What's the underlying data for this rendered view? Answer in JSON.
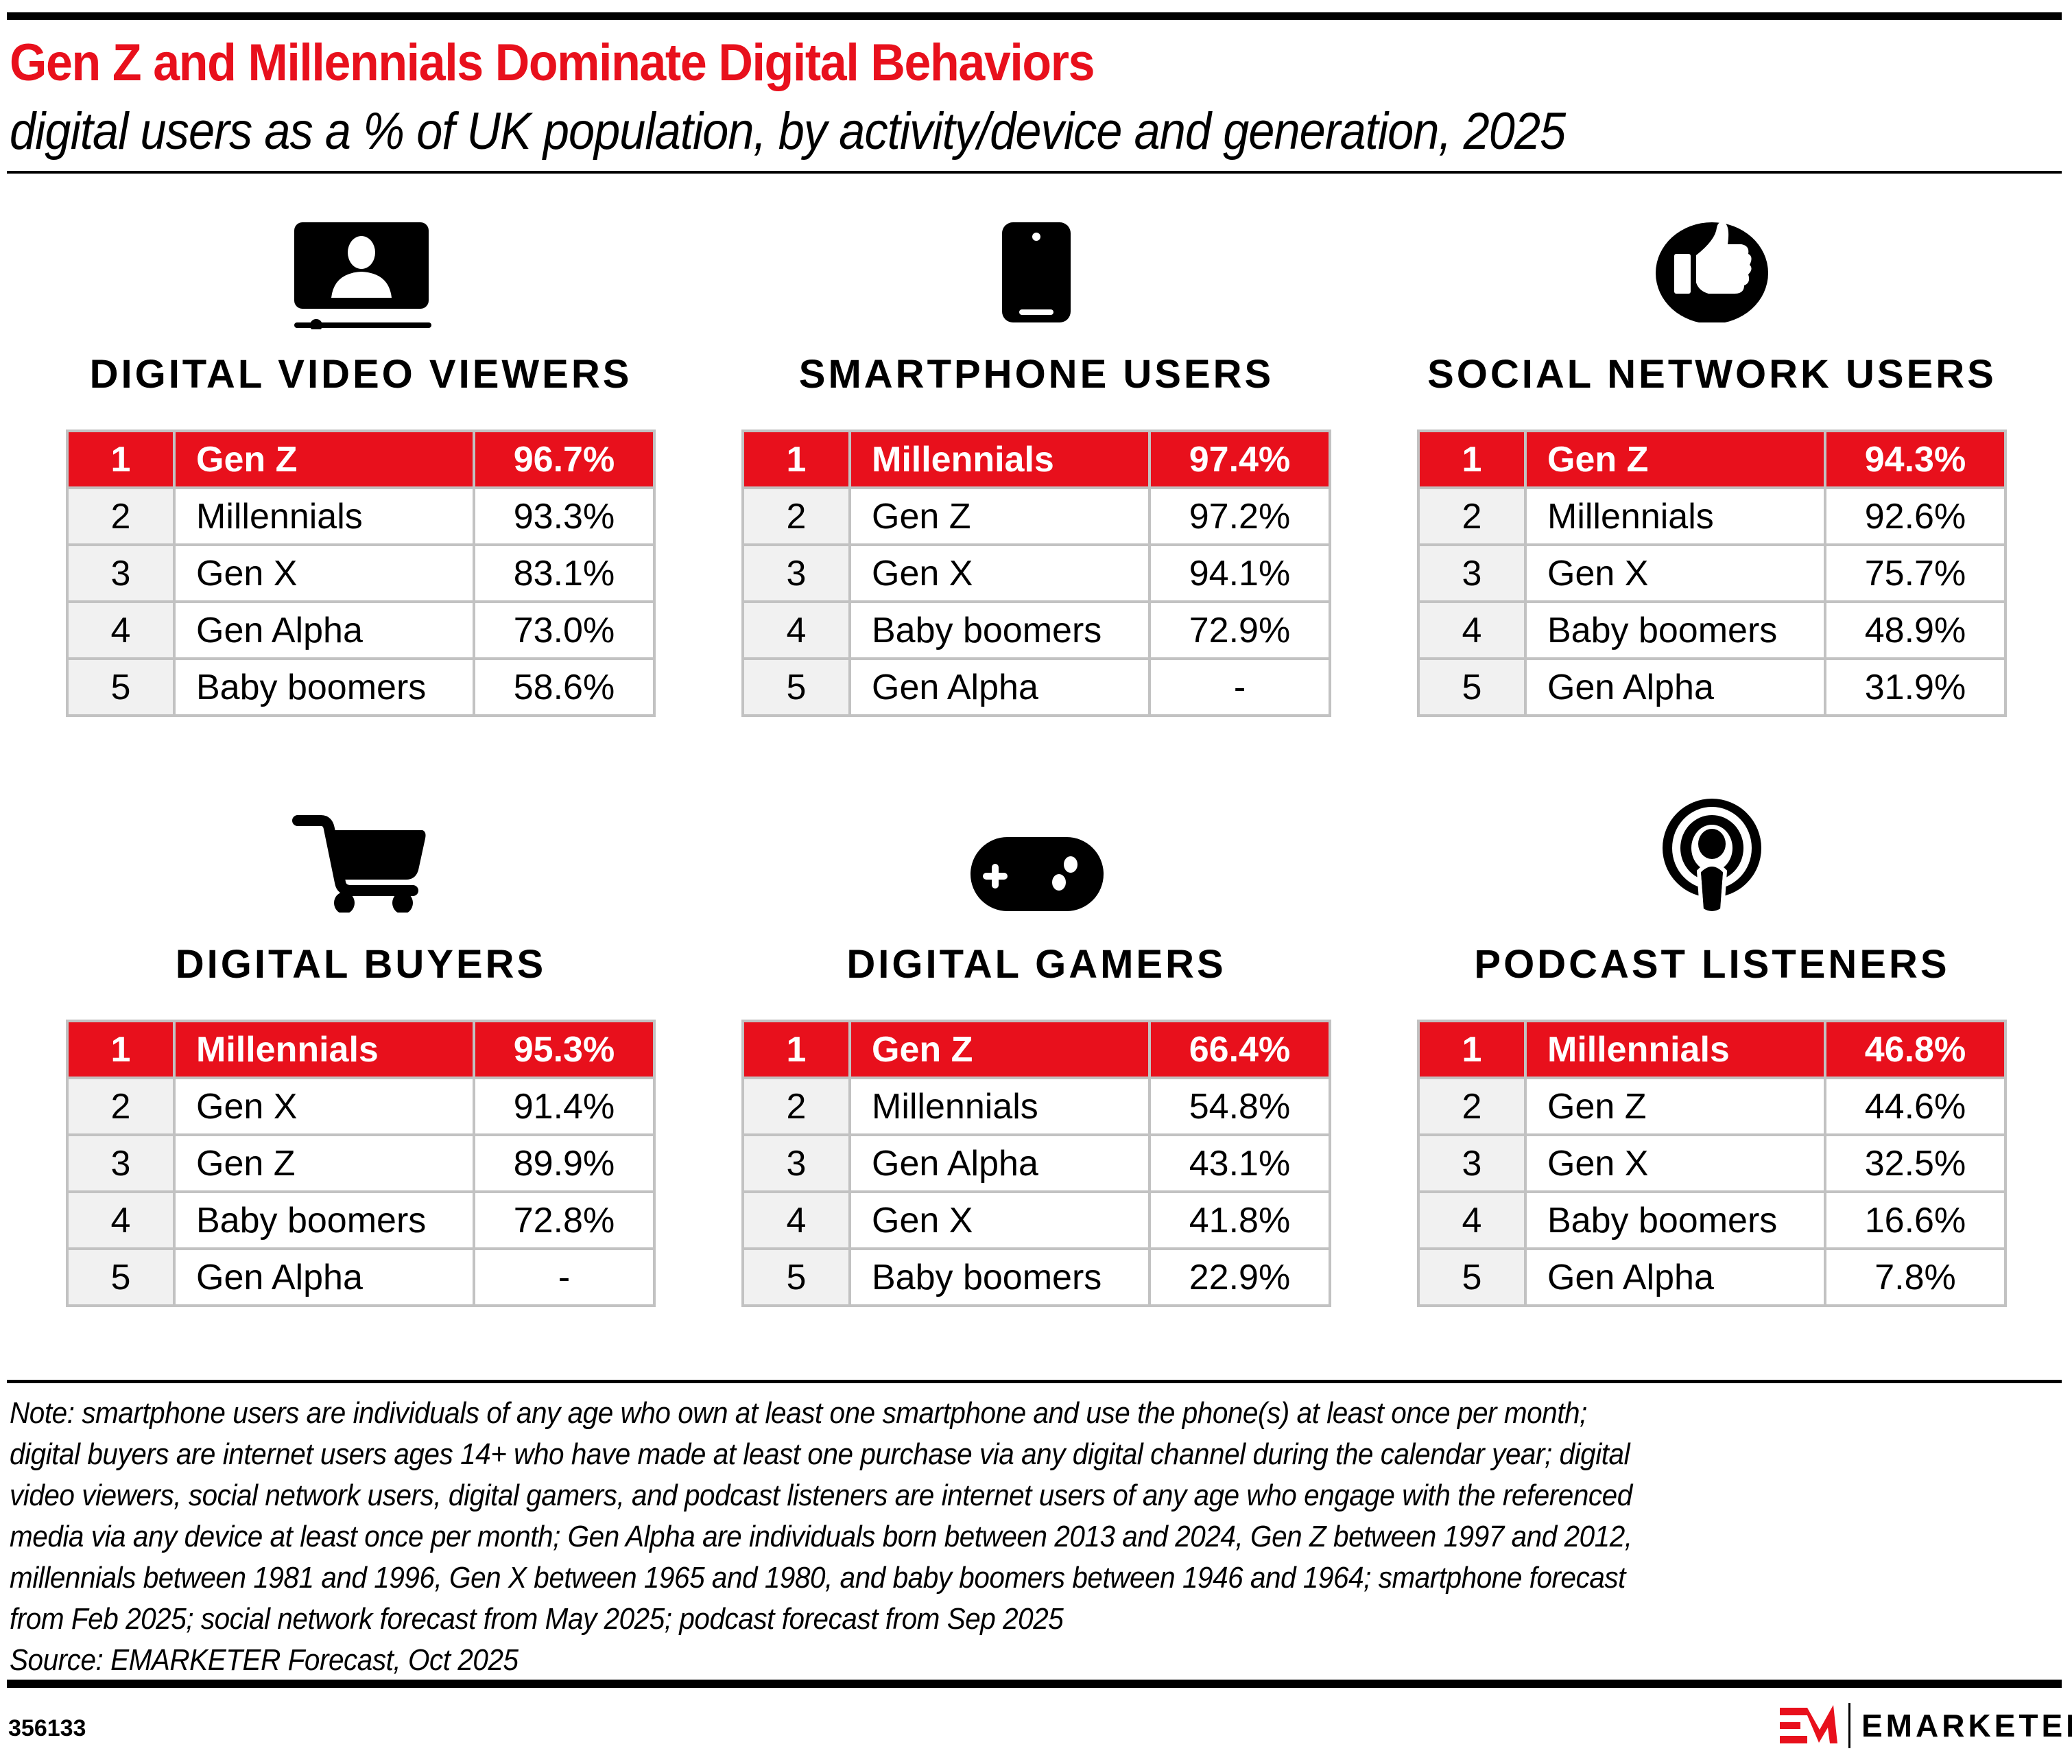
{
  "header": {
    "title": "Gen Z and Millennials Dominate Digital Behaviors",
    "subtitle": "digital users as a % of UK population, by activity/device and generation, 2025"
  },
  "colors": {
    "accent_red": "#e8101c",
    "border_gray": "#c2c2c2",
    "rank_bg": "#f1f1f1"
  },
  "chart_data": {
    "type": "table",
    "title": "Gen Z and Millennials Dominate Digital Behaviors",
    "subtitle": "digital users as a % of UK population, by activity/device and generation, 2025",
    "unit": "% of UK population",
    "panels": [
      {
        "heading": "DIGITAL VIDEO VIEWERS",
        "icon": "video-viewer-icon",
        "rows": [
          {
            "rank": "1",
            "generation": "Gen Z",
            "value": "96.7%"
          },
          {
            "rank": "2",
            "generation": "Millennials",
            "value": "93.3%"
          },
          {
            "rank": "3",
            "generation": "Gen X",
            "value": "83.1%"
          },
          {
            "rank": "4",
            "generation": "Gen Alpha",
            "value": "73.0%"
          },
          {
            "rank": "5",
            "generation": "Baby boomers",
            "value": "58.6%"
          }
        ]
      },
      {
        "heading": "SMARTPHONE USERS",
        "icon": "smartphone-icon",
        "rows": [
          {
            "rank": "1",
            "generation": "Millennials",
            "value": "97.4%"
          },
          {
            "rank": "2",
            "generation": "Gen Z",
            "value": "97.2%"
          },
          {
            "rank": "3",
            "generation": "Gen X",
            "value": "94.1%"
          },
          {
            "rank": "4",
            "generation": "Baby boomers",
            "value": "72.9%"
          },
          {
            "rank": "5",
            "generation": "Gen Alpha",
            "value": "-"
          }
        ]
      },
      {
        "heading": "SOCIAL NETWORK USERS",
        "icon": "thumbs-up-icon",
        "rows": [
          {
            "rank": "1",
            "generation": "Gen Z",
            "value": "94.3%"
          },
          {
            "rank": "2",
            "generation": "Millennials",
            "value": "92.6%"
          },
          {
            "rank": "3",
            "generation": "Gen X",
            "value": "75.7%"
          },
          {
            "rank": "4",
            "generation": "Baby boomers",
            "value": "48.9%"
          },
          {
            "rank": "5",
            "generation": "Gen Alpha",
            "value": "31.9%"
          }
        ]
      },
      {
        "heading": "DIGITAL BUYERS",
        "icon": "shopping-cart-icon",
        "rows": [
          {
            "rank": "1",
            "generation": "Millennials",
            "value": "95.3%"
          },
          {
            "rank": "2",
            "generation": "Gen X",
            "value": "91.4%"
          },
          {
            "rank": "3",
            "generation": "Gen Z",
            "value": "89.9%"
          },
          {
            "rank": "4",
            "generation": "Baby boomers",
            "value": "72.8%"
          },
          {
            "rank": "5",
            "generation": "Gen Alpha",
            "value": "-"
          }
        ]
      },
      {
        "heading": "DIGITAL GAMERS",
        "icon": "game-controller-icon",
        "rows": [
          {
            "rank": "1",
            "generation": "Gen Z",
            "value": "66.4%"
          },
          {
            "rank": "2",
            "generation": "Millennials",
            "value": "54.8%"
          },
          {
            "rank": "3",
            "generation": "Gen Alpha",
            "value": "43.1%"
          },
          {
            "rank": "4",
            "generation": "Gen X",
            "value": "41.8%"
          },
          {
            "rank": "5",
            "generation": "Baby boomers",
            "value": "22.9%"
          }
        ]
      },
      {
        "heading": "PODCAST LISTENERS",
        "icon": "podcast-icon",
        "rows": [
          {
            "rank": "1",
            "generation": "Millennials",
            "value": "46.8%"
          },
          {
            "rank": "2",
            "generation": "Gen Z",
            "value": "44.6%"
          },
          {
            "rank": "3",
            "generation": "Gen X",
            "value": "32.5%"
          },
          {
            "rank": "4",
            "generation": "Baby boomers",
            "value": "16.6%"
          },
          {
            "rank": "5",
            "generation": "Gen Alpha",
            "value": "7.8%"
          }
        ]
      }
    ]
  },
  "notes": {
    "lines": [
      "Note: smartphone users are individuals of any age who own at least one smartphone and use the phone(s) at least once per month;",
      "digital buyers are internet users ages 14+ who have made at least one purchase via any digital channel during the calendar year; digital",
      "video viewers, social network users, digital gamers, and podcast listeners are internet users of any age who engage with the referenced",
      "media via any device at least once per month; Gen Alpha are individuals born between 2013 and 2024, Gen Z between 1997 and 2012,",
      "millennials between 1981 and 1996, Gen X between 1965 and 1980, and baby boomers between 1946 and 1964; smartphone forecast",
      "from Feb 2025; social network forecast from May 2025; podcast forecast from Sep 2025",
      "Source: EMARKETER Forecast, Oct 2025"
    ]
  },
  "footer": {
    "chart_id": "356133",
    "brand": "EMARKETER"
  }
}
